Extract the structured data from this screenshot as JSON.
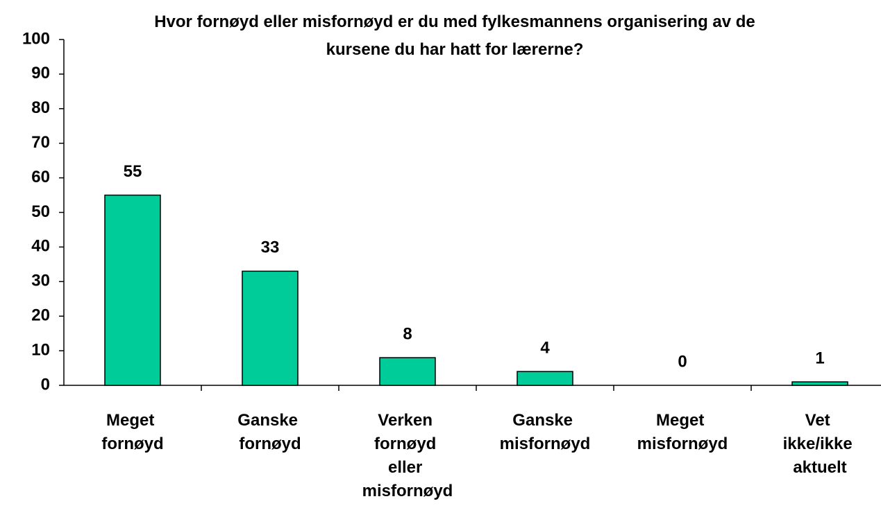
{
  "chart_data": {
    "type": "bar",
    "title": "Hvor fornøyd eller misfornøyd er du med fylkesmannens organisering av de kursene du har hatt for lærerne?",
    "categories": [
      "Meget fornøyd",
      "Ganske fornøyd",
      "Verken fornøyd eller misfornøyd",
      "Ganske misfornøyd",
      "Meget misfornøyd",
      "Vet ikke/ikke aktuelt"
    ],
    "values": [
      55,
      33,
      8,
      4,
      0,
      1
    ],
    "color": "#00cc99",
    "ylim": [
      0,
      100
    ],
    "yticks": [
      0,
      10,
      20,
      30,
      40,
      50,
      60,
      70,
      80,
      90,
      100
    ],
    "grid": false
  }
}
